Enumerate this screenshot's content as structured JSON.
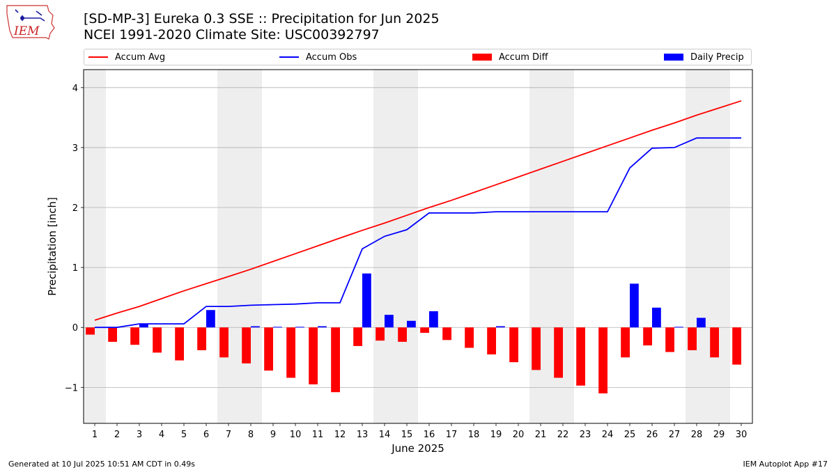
{
  "logo": {
    "text": "IEM",
    "icon": "iowa-state-outline-icon"
  },
  "title": {
    "line1": "[SD-MP-3] Eureka 0.3 SSE :: Precipitation for Jun 2025",
    "line2": "NCEI 1991-2020 Climate Site: USC00392797"
  },
  "legend": {
    "accum_avg": "Accum Avg",
    "accum_obs": "Accum Obs",
    "accum_diff": "Accum Diff",
    "daily_precip": "Daily Precip"
  },
  "footer": {
    "left": "Generated at 10 Jul 2025 10:51 AM CDT in 0.49s",
    "right": "IEM Autoplot App #17"
  },
  "colors": {
    "avg": "#ff0000",
    "obs": "#0000ff",
    "diff": "#ff0000",
    "daily": "#0000ff",
    "weekend_shade": "#eeeeee",
    "grid": "#b0b0b0"
  },
  "chart_data": {
    "type": "bar",
    "xlabel": "June 2025",
    "ylabel": "Precipitation [inch]",
    "xlim": [
      0.5,
      30.5
    ],
    "ylim": [
      -1.6,
      4.3
    ],
    "yticks": [
      -1,
      0,
      1,
      2,
      3,
      4
    ],
    "ytick_labels": [
      "−1",
      "0",
      "1",
      "2",
      "3",
      "4"
    ],
    "grid": true,
    "legend_position": "top",
    "x": [
      1,
      2,
      3,
      4,
      5,
      6,
      7,
      8,
      9,
      10,
      11,
      12,
      13,
      14,
      15,
      16,
      17,
      18,
      19,
      20,
      21,
      22,
      23,
      24,
      25,
      26,
      27,
      28,
      29,
      30
    ],
    "shaded_weekend_days": [
      1,
      7,
      8,
      14,
      15,
      21,
      22,
      28,
      29
    ],
    "series": [
      {
        "name": "Accum Avg",
        "kind": "line",
        "values": [
          0.12,
          0.24,
          0.35,
          0.48,
          0.61,
          0.73,
          0.85,
          0.97,
          1.1,
          1.23,
          1.36,
          1.49,
          1.62,
          1.74,
          1.87,
          2.0,
          2.12,
          2.25,
          2.38,
          2.51,
          2.64,
          2.77,
          2.9,
          3.03,
          3.16,
          3.29,
          3.41,
          3.54,
          3.66,
          3.78
        ]
      },
      {
        "name": "Accum Obs",
        "kind": "line",
        "values": [
          0.0,
          0.0,
          0.06,
          0.06,
          0.06,
          0.35,
          0.35,
          0.37,
          0.38,
          0.39,
          0.41,
          0.41,
          1.31,
          1.52,
          1.63,
          1.91,
          1.91,
          1.91,
          1.93,
          1.93,
          1.93,
          1.93,
          1.93,
          1.93,
          2.66,
          2.99,
          3.0,
          3.16,
          3.16,
          3.16
        ]
      },
      {
        "name": "Accum Diff",
        "kind": "bar",
        "values": [
          -0.12,
          -0.24,
          -0.29,
          -0.42,
          -0.55,
          -0.38,
          -0.5,
          -0.6,
          -0.72,
          -0.84,
          -0.95,
          -1.08,
          -0.31,
          -0.22,
          -0.24,
          -0.09,
          -0.21,
          -0.34,
          -0.45,
          -0.58,
          -0.71,
          -0.84,
          -0.97,
          -1.1,
          -0.5,
          -0.3,
          -0.41,
          -0.38,
          -0.5,
          -0.62
        ]
      },
      {
        "name": "Daily Precip",
        "kind": "bar",
        "values": [
          0.0,
          0.0,
          0.06,
          0.0,
          0.0,
          0.29,
          0.0,
          0.02,
          0.01,
          0.01,
          0.02,
          0.0,
          0.9,
          0.21,
          0.11,
          0.27,
          0.0,
          0.0,
          0.02,
          0.0,
          0.0,
          0.0,
          0.0,
          0.0,
          0.73,
          0.33,
          0.01,
          0.16,
          0.0,
          0.0
        ]
      }
    ]
  }
}
